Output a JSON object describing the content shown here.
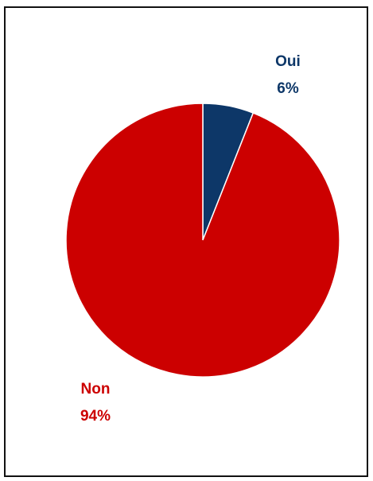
{
  "chart_data": {
    "type": "pie",
    "categories": [
      "Oui",
      "Non"
    ],
    "values": [
      6,
      94
    ],
    "value_labels": [
      "6%",
      "94%"
    ],
    "colors": [
      "#0d3768",
      "#cc0000"
    ]
  }
}
